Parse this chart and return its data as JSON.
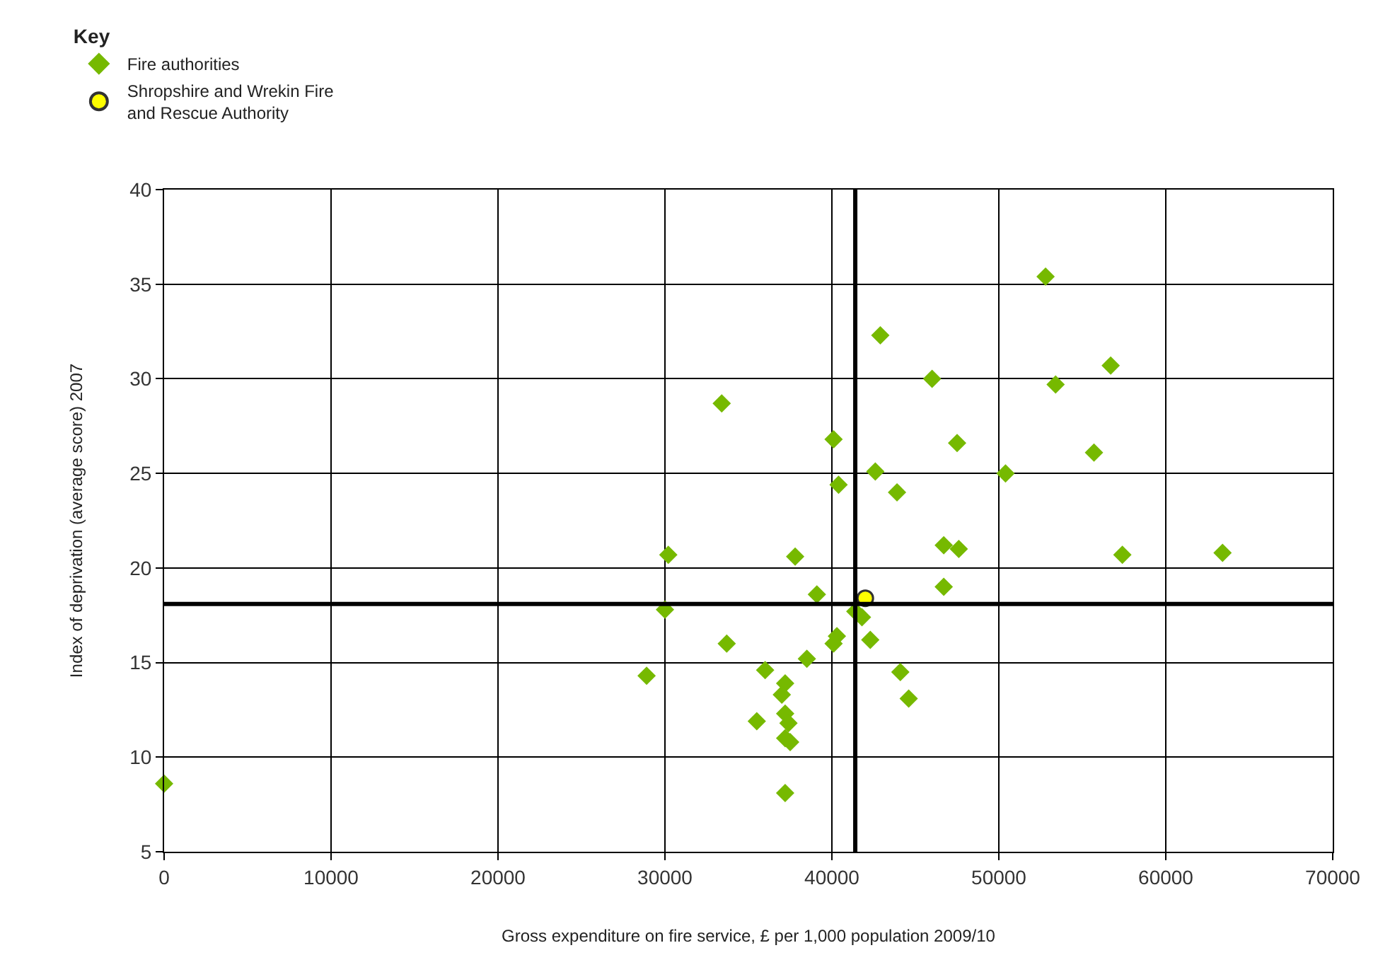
{
  "chart_data": {
    "type": "scatter",
    "legend_title": "Key",
    "xlabel": "Gross expenditure on fire service, £ per 1,000 population 2009/10",
    "ylabel": "Index of deprivation (average score) 2007",
    "xlim": [
      0,
      70000
    ],
    "xticks": [
      0,
      10000,
      20000,
      30000,
      40000,
      50000,
      60000,
      70000
    ],
    "ylim": [
      5,
      40
    ],
    "yticks": [
      5,
      10,
      15,
      20,
      25,
      30,
      35,
      40
    ],
    "grid": true,
    "legend": "top left",
    "series": [
      {
        "name": "Fire authorities",
        "color": "#76b900",
        "marker": "diamond",
        "x": [
          52800,
          42900,
          33400,
          46000,
          56700,
          53400,
          40100,
          47500,
          40400,
          42600,
          43900,
          50400,
          55700,
          30200,
          37800,
          46700,
          47600,
          57400,
          63400,
          39100,
          46700,
          30000,
          41400,
          41800,
          33700,
          40100,
          40300,
          42300,
          38500,
          36000,
          28900,
          44100,
          44600,
          37200,
          37000,
          35500,
          37200,
          37400,
          37200,
          37500,
          37200,
          0
        ],
        "values": [
          35.4,
          32.3,
          28.7,
          30.0,
          30.7,
          29.7,
          26.8,
          26.6,
          24.4,
          25.1,
          24.0,
          25.0,
          26.1,
          20.7,
          20.6,
          21.2,
          21.0,
          20.7,
          20.8,
          18.6,
          19.0,
          17.8,
          17.7,
          17.4,
          16.0,
          16.0,
          16.4,
          16.2,
          15.2,
          14.6,
          14.3,
          14.5,
          13.1,
          13.9,
          13.3,
          11.9,
          12.3,
          11.8,
          11.0,
          10.8,
          8.1,
          8.6
        ]
      },
      {
        "name": "Shropshire and Wrekin Fire\nand Rescue Authority",
        "color": "#ffff00",
        "marker": "circle",
        "x": [
          42000
        ],
        "values": [
          18.4
        ]
      }
    ],
    "ref_lines": [
      {
        "axis": "x",
        "value": 41400,
        "color": "#000000"
      },
      {
        "axis": "y",
        "value": 18.1,
        "color": "#000000"
      }
    ]
  }
}
